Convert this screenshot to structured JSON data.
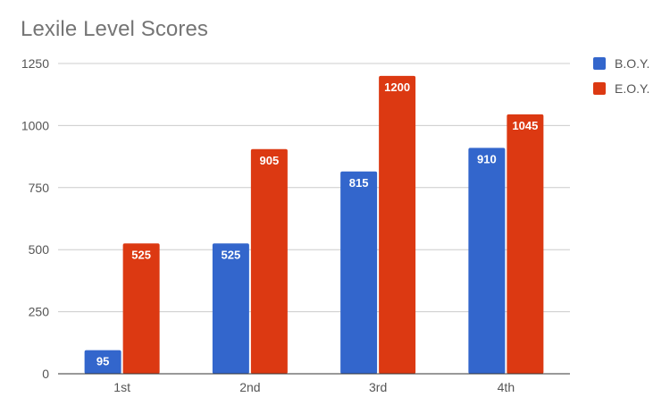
{
  "chart_data": {
    "type": "bar",
    "title": "Lexile Level Scores",
    "xlabel": "",
    "ylabel": "",
    "categories": [
      "1st",
      "2nd",
      "3rd",
      "4th"
    ],
    "series": [
      {
        "name": "B.O.Y.",
        "color": "#3366cc",
        "values": [
          95,
          525,
          815,
          910
        ]
      },
      {
        "name": "E.O.Y.",
        "color": "#dc3912",
        "values": [
          525,
          905,
          1200,
          1045
        ]
      }
    ],
    "ylim": [
      0,
      1250
    ],
    "yticks": [
      0,
      250,
      500,
      750,
      1000,
      1250
    ],
    "grid": true,
    "legend_position": "right",
    "data_labels": true
  }
}
